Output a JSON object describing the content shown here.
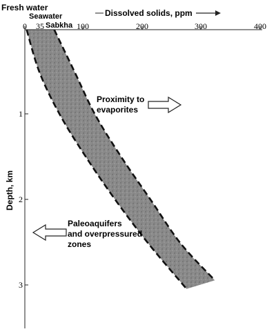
{
  "chart_data": {
    "type": "area",
    "title": "",
    "x_axis": {
      "label": "Dissolved solids, ppm",
      "position": "top",
      "ticks": [
        0,
        100,
        200,
        300,
        400
      ],
      "tick_labels": [
        "0",
        "100",
        "200",
        "300",
        "400"
      ],
      "range": [
        0,
        400
      ]
    },
    "y_axis": {
      "label": "Depth, km",
      "inverted": true,
      "ticks": [
        1,
        2,
        3
      ],
      "tick_labels": [
        "1",
        "2",
        "3"
      ],
      "range": [
        0,
        3.5
      ]
    },
    "reference_markers": [
      {
        "label": "Fresh water",
        "value": 0
      },
      {
        "label": "Seawater",
        "value": 35,
        "tick_label": "35"
      },
      {
        "label": "Sabkha",
        "value": "~50"
      }
    ],
    "band": {
      "lower_bound": [
        {
          "depth": 0,
          "ppm": 3
        },
        {
          "depth": 0.5,
          "ppm": 25
        },
        {
          "depth": 1.0,
          "ppm": 60
        },
        {
          "depth": 1.5,
          "ppm": 105
        },
        {
          "depth": 2.0,
          "ppm": 155
        },
        {
          "depth": 2.5,
          "ppm": 210
        },
        {
          "depth": 3.03,
          "ppm": 275
        }
      ],
      "upper_bound": [
        {
          "depth": 0,
          "ppm": 50
        },
        {
          "depth": 0.5,
          "ppm": 85
        },
        {
          "depth": 1.0,
          "ppm": 120
        },
        {
          "depth": 1.5,
          "ppm": 165
        },
        {
          "depth": 2.0,
          "ppm": 215
        },
        {
          "depth": 2.5,
          "ppm": 265
        },
        {
          "depth": 2.93,
          "ppm": 323
        }
      ]
    },
    "annotations": [
      {
        "text_lines": [
          "Proximity to",
          "evaporites"
        ],
        "arrow": "right"
      },
      {
        "text_lines": [
          "Paleoaquifers",
          "and overpressured",
          "zones"
        ],
        "arrow": "left"
      }
    ]
  }
}
